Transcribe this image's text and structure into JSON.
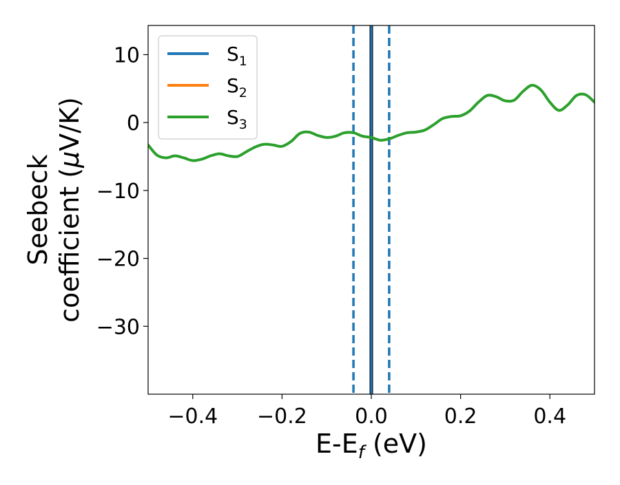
{
  "chart_data": {
    "type": "line",
    "title": "",
    "xlabel": "E-E",
    "xlabel_sub": "f",
    "xlabel_unit": " (eV)",
    "ylabel_line1": "Seebeck",
    "ylabel_line2": "coefficient  (",
    "ylabel_mu": "μ",
    "ylabel_unit_tail": "V/K)",
    "xlim": [
      -0.5,
      0.5
    ],
    "ylim": [
      -40,
      14.3
    ],
    "xticks": [
      -0.4,
      -0.2,
      0.0,
      0.2,
      0.4
    ],
    "xtick_labels": [
      "−0.4",
      "−0.2",
      "0.0",
      "0.2",
      "0.4"
    ],
    "yticks": [
      -30,
      -20,
      -10,
      0,
      10
    ],
    "ytick_labels": [
      "−30",
      "−20",
      "−10",
      "0",
      "10"
    ],
    "grid": false,
    "legend_position": "top-left",
    "series": [
      {
        "name": "S",
        "sub": "1",
        "color": "#1f77b4"
      },
      {
        "name": "S",
        "sub": "2",
        "color": "#ff7f0e"
      },
      {
        "name": "S",
        "sub": "3",
        "color": "#2ca02c",
        "x": [
          -0.5,
          -0.48,
          -0.46,
          -0.44,
          -0.42,
          -0.4,
          -0.38,
          -0.36,
          -0.34,
          -0.32,
          -0.3,
          -0.28,
          -0.26,
          -0.24,
          -0.22,
          -0.2,
          -0.18,
          -0.16,
          -0.14,
          -0.12,
          -0.1,
          -0.08,
          -0.06,
          -0.04,
          -0.02,
          0.0,
          0.02,
          0.04,
          0.06,
          0.08,
          0.1,
          0.12,
          0.14,
          0.16,
          0.18,
          0.2,
          0.22,
          0.24,
          0.26,
          0.28,
          0.3,
          0.32,
          0.34,
          0.36,
          0.38,
          0.4,
          0.42,
          0.44,
          0.46,
          0.48,
          0.5
        ],
        "y": [
          -3.3,
          -4.8,
          -5.2,
          -4.9,
          -5.2,
          -5.6,
          -5.4,
          -4.9,
          -4.6,
          -4.9,
          -5.0,
          -4.3,
          -3.6,
          -3.2,
          -3.3,
          -3.5,
          -2.8,
          -1.6,
          -1.4,
          -1.9,
          -2.2,
          -2.0,
          -1.5,
          -1.5,
          -2.0,
          -2.2,
          -2.6,
          -2.4,
          -1.9,
          -1.5,
          -1.4,
          -1.1,
          -0.3,
          0.6,
          0.9,
          1.0,
          1.7,
          3.0,
          4.0,
          3.8,
          3.2,
          3.3,
          4.6,
          5.5,
          4.8,
          3.0,
          1.8,
          2.6,
          4.0,
          4.1,
          3.0
        ]
      }
    ],
    "vlines": [
      {
        "x": -0.04,
        "style": "dashed",
        "color": "#1f77b4"
      },
      {
        "x": 0.04,
        "style": "dashed",
        "color": "#1f77b4"
      },
      {
        "x": 0.0,
        "style": "solid",
        "color": "#000000"
      },
      {
        "x": 0.0,
        "style": "solid",
        "color": "#1f77b4"
      }
    ]
  }
}
